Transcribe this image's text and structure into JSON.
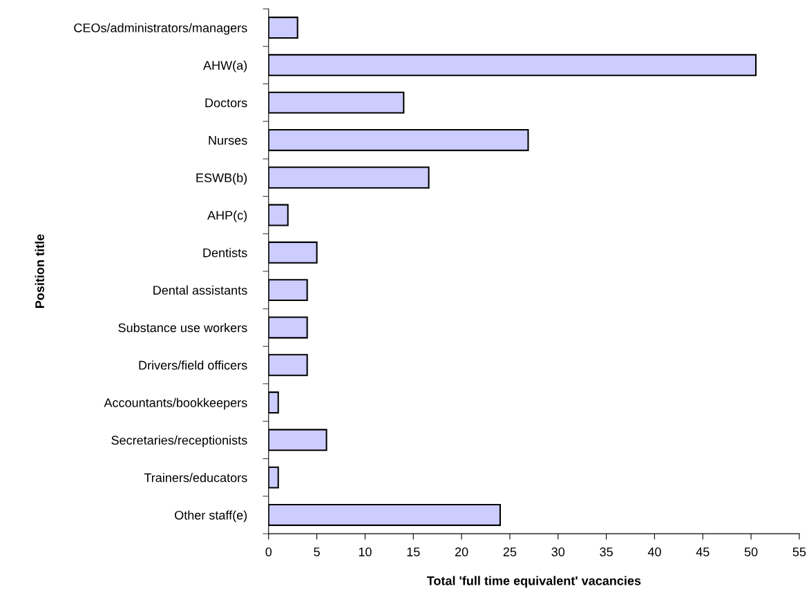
{
  "chart_data": {
    "type": "bar",
    "orientation": "horizontal",
    "xlabel": "Total 'full time equivalent' vacancies",
    "ylabel": "Position title",
    "categories": [
      "CEOs/administrators/managers",
      "AHW(a)",
      "Doctors",
      "Nurses",
      "ESWB(b)",
      "AHP(c)",
      "Dentists",
      "Dental assistants",
      "Substance use workers",
      "Drivers/field officers",
      "Accountants/bookkeepers",
      "Secretaries/receptionists",
      "Trainers/educators",
      "Other staff(e)"
    ],
    "values": [
      3,
      50.5,
      14,
      26.9,
      16.6,
      2,
      5,
      4,
      4,
      4,
      1,
      6,
      1,
      24
    ],
    "color": "#ccccff",
    "xlim": [
      0,
      55
    ],
    "xticks": [
      0,
      5,
      10,
      15,
      20,
      25,
      30,
      35,
      40,
      45,
      50,
      55
    ],
    "grid": false,
    "legend": false
  }
}
